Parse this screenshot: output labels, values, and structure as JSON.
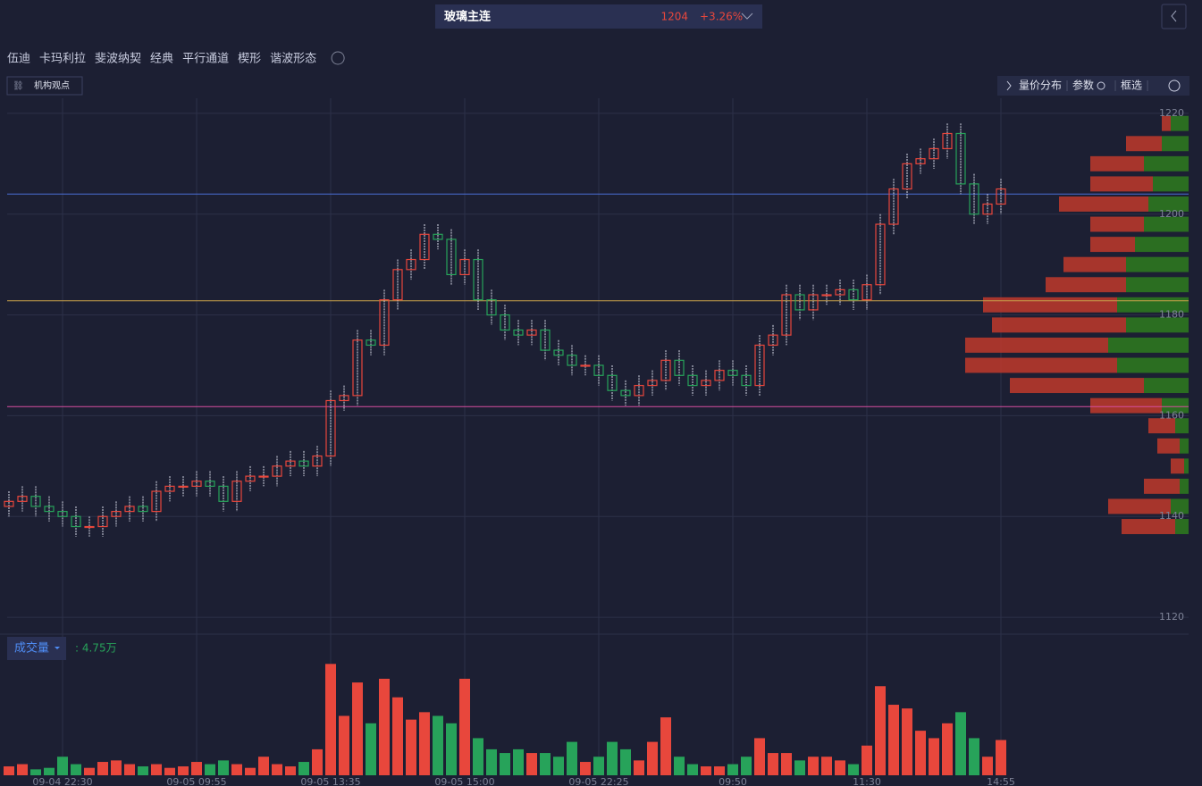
{
  "header": {
    "symbol": "玻璃主连",
    "price": "1204",
    "change": "+3.26%"
  },
  "toolbar": {
    "tools": [
      "伍迪",
      "卡玛利拉",
      "斐波纳契",
      "经典",
      "平行通道",
      "楔形",
      "谐波形态"
    ],
    "view_button": "机构观点",
    "right_buttons": [
      "量价分布",
      "参数",
      "框选"
    ]
  },
  "chart_data": {
    "type": "candlestick",
    "categories": [
      null,
      null,
      null,
      null,
      "09-04 22:30",
      null,
      null,
      null,
      null,
      null,
      null,
      null,
      null,
      null,
      "09-05 09:55",
      null,
      null,
      null,
      null,
      null,
      null,
      null,
      null,
      null,
      "09-05 13:35",
      null,
      null,
      null,
      null,
      null,
      null,
      null,
      null,
      null,
      "09-05 15:00",
      null,
      null,
      null,
      null,
      null,
      null,
      null,
      null,
      null,
      "09-05 22:25",
      null,
      null,
      null,
      null,
      null,
      null,
      null,
      null,
      null,
      "09:50",
      null,
      null,
      null,
      null,
      null,
      null,
      null,
      null,
      null,
      "11:30",
      null,
      null,
      null,
      null,
      null,
      null,
      null,
      null,
      null,
      "14:55"
    ],
    "open": [
      1142,
      1143,
      1144,
      1142,
      1141,
      1140,
      1138,
      1138,
      1140,
      1141,
      1142,
      1141,
      1145,
      1146,
      1146,
      1147,
      1146,
      1143,
      1147,
      1148,
      1148,
      1150,
      1151,
      1150,
      1152,
      1163,
      1164,
      1175,
      1174,
      1183,
      1189,
      1191,
      1196,
      1195,
      1188,
      1191,
      1183,
      1180,
      1177,
      1176,
      1177,
      1173,
      1172,
      1170,
      1170,
      1168,
      1165,
      1164,
      1166,
      1167,
      1171,
      1168,
      1166,
      1167,
      1169,
      1168,
      1166,
      1174,
      1176,
      1184,
      1181,
      1184,
      1184,
      1185,
      1183,
      1186,
      1198,
      1205,
      1210,
      1211,
      1213,
      1216,
      1206,
      1200,
      1202
    ],
    "high": [
      1145,
      1146,
      1146,
      1144,
      1143,
      1142,
      1140,
      1142,
      1143,
      1144,
      1144,
      1147,
      1148,
      1148,
      1149,
      1149,
      1148,
      1149,
      1150,
      1150,
      1152,
      1153,
      1153,
      1154,
      1165,
      1166,
      1177,
      1177,
      1185,
      1191,
      1193,
      1198,
      1198,
      1197,
      1193,
      1193,
      1185,
      1182,
      1179,
      1179,
      1179,
      1175,
      1174,
      1172,
      1172,
      1170,
      1167,
      1168,
      1169,
      1173,
      1173,
      1170,
      1169,
      1171,
      1171,
      1170,
      1176,
      1178,
      1186,
      1186,
      1186,
      1186,
      1187,
      1187,
      1188,
      1200,
      1207,
      1212,
      1213,
      1215,
      1218,
      1218,
      1208,
      1204,
      1207
    ],
    "low": [
      1140,
      1141,
      1140,
      1139,
      1138,
      1136,
      1136,
      1136,
      1138,
      1139,
      1139,
      1139,
      1143,
      1144,
      1144,
      1144,
      1141,
      1141,
      1145,
      1146,
      1146,
      1148,
      1148,
      1148,
      1150,
      1161,
      1162,
      1172,
      1172,
      1181,
      1187,
      1189,
      1193,
      1186,
      1186,
      1181,
      1178,
      1175,
      1174,
      1174,
      1171,
      1170,
      1168,
      1168,
      1166,
      1163,
      1162,
      1162,
      1164,
      1165,
      1166,
      1164,
      1164,
      1165,
      1166,
      1164,
      1164,
      1172,
      1174,
      1179,
      1179,
      1182,
      1182,
      1181,
      1181,
      1184,
      1196,
      1203,
      1208,
      1209,
      1211,
      1204,
      1198,
      1198,
      1200
    ],
    "close": [
      1143,
      1144,
      1142,
      1141,
      1140,
      1138,
      1138,
      1140,
      1141,
      1142,
      1141,
      1145,
      1146,
      1146,
      1147,
      1146,
      1143,
      1147,
      1148,
      1148,
      1150,
      1151,
      1150,
      1152,
      1163,
      1164,
      1175,
      1174,
      1183,
      1189,
      1191,
      1196,
      1195,
      1188,
      1191,
      1183,
      1180,
      1177,
      1176,
      1177,
      1173,
      1172,
      1170,
      1170,
      1168,
      1165,
      1164,
      1166,
      1167,
      1171,
      1168,
      1166,
      1167,
      1169,
      1168,
      1166,
      1174,
      1176,
      1184,
      1181,
      1184,
      1184,
      1185,
      1183,
      1186,
      1198,
      1205,
      1210,
      1211,
      1213,
      1216,
      1206,
      1200,
      1202,
      1205
    ],
    "up_color": "#e8473c",
    "down_color": "#27a35a",
    "ylim": [
      1117,
      1223
    ],
    "yticks": [
      1120,
      1140,
      1160,
      1180,
      1200,
      1220
    ],
    "grid": true,
    "levels": [
      {
        "value": 1204,
        "color": "#4a6fd6"
      },
      {
        "value": 1182.8,
        "color": "#c9a24a"
      },
      {
        "value": 1161.8,
        "color": "#d74fa0"
      }
    ],
    "volume": {
      "label": "成交量",
      "value_text": ": 4.75万",
      "ylim": [
        0,
        16
      ],
      "values": [
        1.2,
        1.5,
        0.8,
        1.0,
        2.5,
        1.5,
        1.0,
        1.8,
        2.0,
        1.5,
        1.2,
        1.5,
        1.0,
        1.2,
        1.8,
        1.5,
        2.0,
        1.5,
        1.0,
        2.5,
        1.5,
        1.2,
        1.8,
        3.5,
        15.0,
        8,
        12.5,
        7,
        13,
        10.5,
        7.5,
        8.5,
        8,
        7,
        13,
        5,
        3.5,
        3,
        3.5,
        3,
        3,
        2.5,
        4.5,
        1.8,
        2.5,
        4.5,
        3.5,
        2.0,
        4.5,
        7.8,
        2.5,
        1.5,
        1.2,
        1.2,
        1.5,
        2.5,
        5,
        3,
        3,
        2,
        2.5,
        2.5,
        2,
        1.5,
        4,
        12,
        9.5,
        9,
        6,
        5,
        7,
        8.5,
        5,
        2.5,
        4.75
      ]
    },
    "profile": {
      "xlim": [
        0,
        200
      ],
      "prices": [
        1218,
        1214,
        1210,
        1206,
        1202,
        1198,
        1194,
        1190,
        1186,
        1182,
        1178,
        1174,
        1170,
        1166,
        1162,
        1158,
        1154,
        1150,
        1146,
        1142,
        1138
      ],
      "sell": [
        10,
        40,
        60,
        70,
        100,
        60,
        50,
        70,
        90,
        150,
        150,
        160,
        170,
        150,
        80,
        30,
        25,
        15,
        40,
        70,
        60
      ],
      "buy": [
        20,
        30,
        50,
        40,
        45,
        50,
        60,
        70,
        70,
        80,
        70,
        90,
        80,
        50,
        30,
        15,
        10,
        5,
        10,
        20,
        15
      ]
    }
  }
}
